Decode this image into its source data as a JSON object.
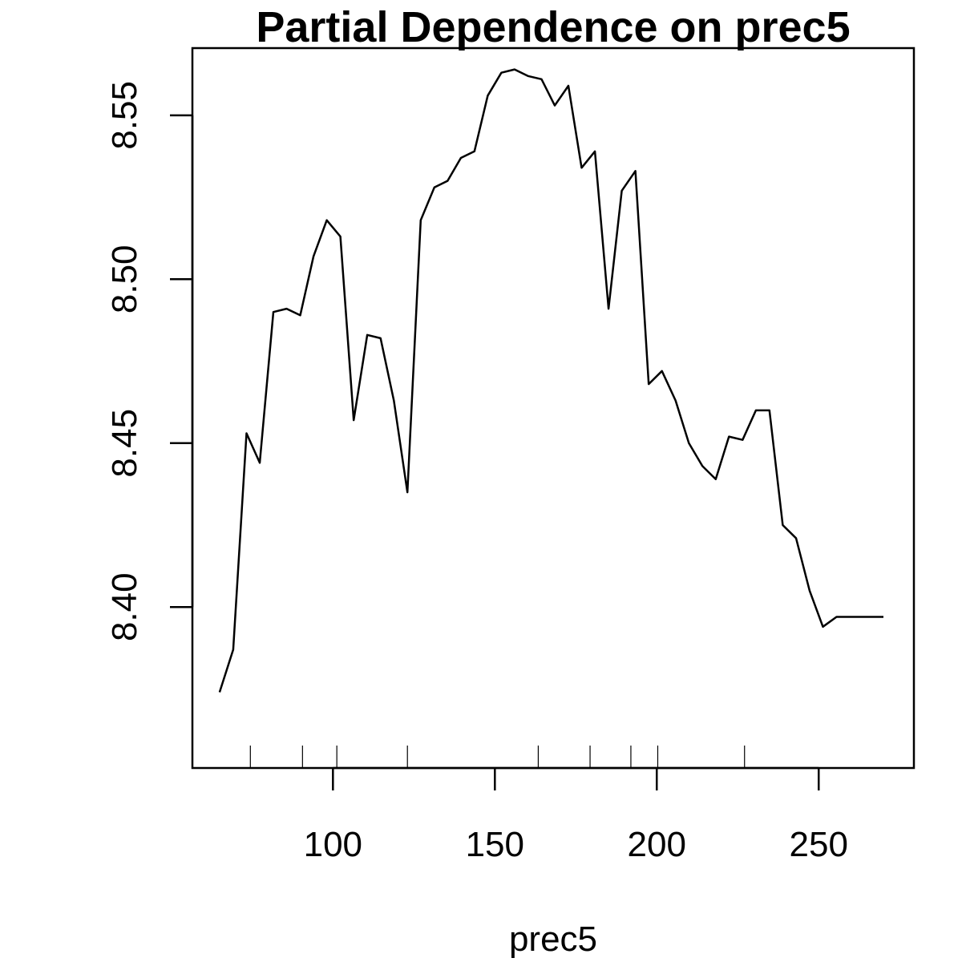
{
  "chart_data": {
    "type": "line",
    "title": "Partial Dependence on prec5",
    "xlabel": "prec5",
    "ylabel": "",
    "xlim": [
      56.6,
      279.4
    ],
    "ylim": [
      8.3509,
      8.5705
    ],
    "x_ticks": [
      100,
      150,
      200,
      250
    ],
    "x_tick_labels": [
      "100",
      "150",
      "200",
      "250"
    ],
    "y_ticks": [
      8.4,
      8.45,
      8.5,
      8.55
    ],
    "y_tick_labels": [
      "8.40",
      "8.45",
      "8.50",
      "8.55"
    ],
    "grid": false,
    "rug": [
      74.5,
      90.6,
      101.2,
      123.0,
      163.4,
      179.4,
      192.0,
      200.3,
      227.1
    ],
    "series": [
      {
        "x": [
          65,
          69.2,
          73.3,
          77.4,
          81.6,
          85.7,
          89.9,
          94.0,
          98.1,
          102.3,
          106.4,
          110.6,
          114.7,
          118.8,
          123.0,
          127.1,
          131.3,
          135.4,
          139.5,
          143.7,
          147.8,
          152.0,
          156.1,
          160.2,
          164.4,
          168.5,
          172.7,
          176.8,
          180.9,
          185.1,
          189.2,
          193.4,
          197.5,
          201.6,
          205.8,
          209.9,
          214.1,
          218.2,
          222.3,
          226.5,
          230.6,
          234.8,
          238.9,
          243.0,
          247.2,
          251.3,
          255.5,
          259.6,
          263.7,
          267.9,
          270.0
        ],
        "values": [
          8.374,
          8.387,
          8.453,
          8.444,
          8.49,
          8.491,
          8.489,
          8.507,
          8.518,
          8.513,
          8.457,
          8.483,
          8.482,
          8.463,
          8.435,
          8.518,
          8.528,
          8.53,
          8.537,
          8.539,
          8.556,
          8.563,
          8.564,
          8.562,
          8.561,
          8.553,
          8.559,
          8.534,
          8.539,
          8.491,
          8.527,
          8.533,
          8.468,
          8.472,
          8.463,
          8.45,
          8.443,
          8.439,
          8.452,
          8.451,
          8.46,
          8.46,
          8.425,
          8.421,
          8.405,
          8.394,
          8.397,
          8.397,
          8.397,
          8.397,
          8.397
        ]
      }
    ]
  }
}
